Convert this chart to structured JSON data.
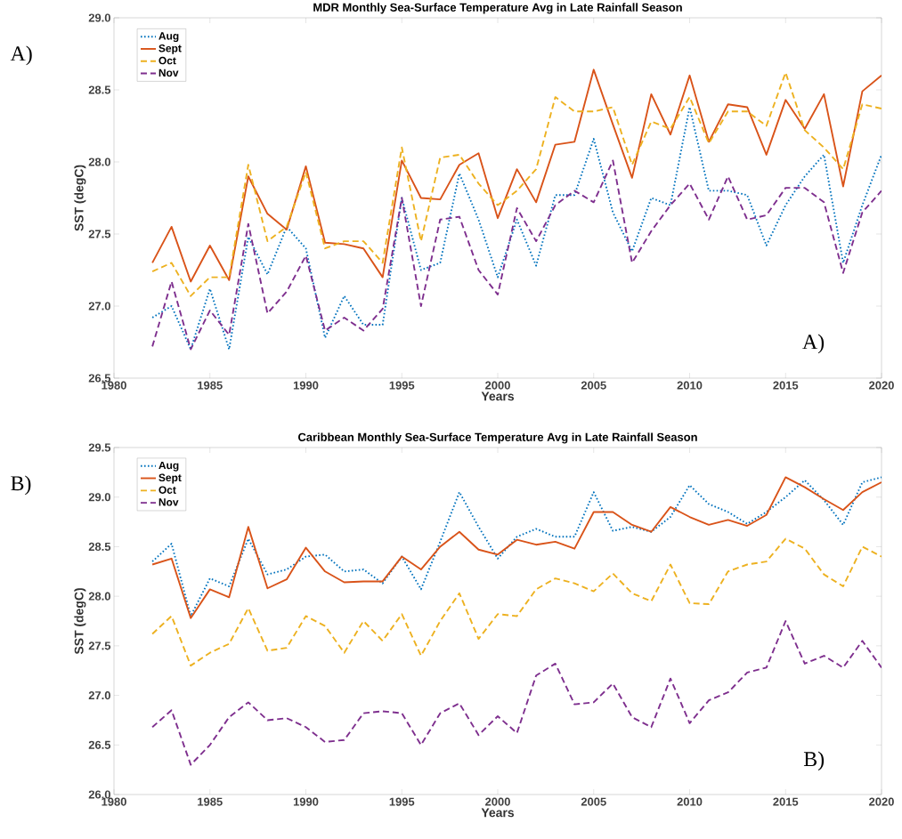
{
  "chart_data": [
    {
      "type": "line",
      "title": "MDR Monthly Sea-Surface Temperature Avg in Late Rainfall Season",
      "xlabel": "Years",
      "ylabel": "SST (degC)",
      "annotations": [
        "A)",
        "A)"
      ],
      "x": [
        1982,
        1983,
        1984,
        1985,
        1986,
        1987,
        1988,
        1989,
        1990,
        1991,
        1992,
        1993,
        1994,
        1995,
        1996,
        1997,
        1998,
        1999,
        2000,
        2001,
        2002,
        2003,
        2004,
        2005,
        2006,
        2007,
        2008,
        2009,
        2010,
        2011,
        2012,
        2013,
        2014,
        2015,
        2016,
        2017,
        2018,
        2019,
        2020
      ],
      "series": [
        {
          "name": "Aug",
          "color": "#0072bd",
          "line_style": "dotted",
          "values": [
            26.92,
            27.0,
            26.7,
            27.12,
            26.7,
            27.48,
            27.22,
            27.55,
            27.4,
            26.78,
            27.07,
            26.87,
            26.87,
            27.75,
            27.25,
            27.3,
            27.92,
            27.6,
            27.2,
            27.6,
            27.28,
            27.77,
            27.77,
            28.16,
            27.65,
            27.38,
            27.75,
            27.7,
            28.38,
            27.8,
            27.8,
            27.77,
            27.42,
            27.7,
            27.9,
            28.05,
            27.3,
            27.7,
            28.05
          ]
        },
        {
          "name": "Sept",
          "color": "#d95319",
          "line_style": "solid",
          "values": [
            27.3,
            27.55,
            27.17,
            27.42,
            27.18,
            27.9,
            27.64,
            27.53,
            27.97,
            27.44,
            27.43,
            27.4,
            27.2,
            28.01,
            27.75,
            27.74,
            27.98,
            28.06,
            27.61,
            27.95,
            27.72,
            28.12,
            28.14,
            28.64,
            28.26,
            27.89,
            28.47,
            28.19,
            28.6,
            28.14,
            28.4,
            28.38,
            28.05,
            28.43,
            28.23,
            28.47,
            27.83,
            28.49,
            28.6
          ]
        },
        {
          "name": "Oct",
          "color": "#edb120",
          "line_style": "dashed",
          "values": [
            27.24,
            27.3,
            27.07,
            27.2,
            27.2,
            27.98,
            27.45,
            27.55,
            27.93,
            27.4,
            27.45,
            27.45,
            27.3,
            28.1,
            27.45,
            28.03,
            28.05,
            27.85,
            27.7,
            27.8,
            27.95,
            28.45,
            28.35,
            28.35,
            28.38,
            27.98,
            28.28,
            28.23,
            28.45,
            28.13,
            28.35,
            28.35,
            28.25,
            28.62,
            28.22,
            28.1,
            27.95,
            28.4,
            28.37
          ]
        },
        {
          "name": "Nov",
          "color": "#7e2f8e",
          "line_style": "dashed",
          "values": [
            26.72,
            27.17,
            26.7,
            26.97,
            26.8,
            27.57,
            26.95,
            27.1,
            27.35,
            26.83,
            26.92,
            26.83,
            26.98,
            27.75,
            27.0,
            27.6,
            27.62,
            27.25,
            27.08,
            27.68,
            27.45,
            27.7,
            27.8,
            27.72,
            28.01,
            27.3,
            27.52,
            27.7,
            27.85,
            27.6,
            27.9,
            27.6,
            27.63,
            27.82,
            27.82,
            27.72,
            27.23,
            27.65,
            27.8
          ]
        }
      ],
      "xlim": [
        1980,
        2020
      ],
      "xticks": [
        1980,
        1985,
        1990,
        1995,
        2000,
        2005,
        2010,
        2015,
        2020
      ],
      "ylim": [
        26.5,
        29
      ],
      "yticks": [
        {
          "value": 26.5,
          "label": "26.5"
        },
        {
          "value": 27,
          "label": "27.0"
        },
        {
          "value": 27.5,
          "label": "27.5"
        },
        {
          "value": 28,
          "label": "28.0"
        },
        {
          "value": 28.5,
          "label": "28.5"
        },
        {
          "value": 29,
          "label": "29.0"
        }
      ],
      "grid": false,
      "legend": "top left"
    },
    {
      "type": "line",
      "title": "Caribbean Monthly Sea-Surface Temperature Avg in Late Rainfall Season",
      "xlabel": "Years",
      "ylabel": "SST (degC)",
      "annotations": [
        "B)",
        "B)"
      ],
      "x": [
        1982,
        1983,
        1984,
        1985,
        1986,
        1987,
        1988,
        1989,
        1990,
        1991,
        1992,
        1993,
        1994,
        1995,
        1996,
        1997,
        1998,
        1999,
        2000,
        2001,
        2002,
        2003,
        2004,
        2005,
        2006,
        2007,
        2008,
        2009,
        2010,
        2011,
        2012,
        2013,
        2014,
        2015,
        2016,
        2017,
        2018,
        2019,
        2020
      ],
      "series": [
        {
          "name": "Aug",
          "color": "#0072bd",
          "line_style": "dotted",
          "values": [
            28.35,
            28.53,
            27.8,
            28.18,
            28.1,
            28.58,
            28.22,
            28.27,
            28.4,
            28.42,
            28.25,
            28.27,
            28.13,
            28.4,
            28.07,
            28.55,
            29.05,
            28.7,
            28.38,
            28.6,
            28.68,
            28.6,
            28.6,
            29.05,
            28.66,
            28.7,
            28.65,
            28.8,
            29.12,
            28.93,
            28.85,
            28.73,
            28.85,
            29.0,
            29.17,
            28.97,
            28.72,
            29.15,
            29.2
          ]
        },
        {
          "name": "Sept",
          "color": "#d95319",
          "line_style": "solid",
          "values": [
            28.32,
            28.38,
            27.78,
            28.07,
            27.99,
            28.7,
            28.08,
            28.17,
            28.49,
            28.25,
            28.14,
            28.15,
            28.15,
            28.4,
            28.27,
            28.5,
            28.65,
            28.47,
            28.42,
            28.57,
            28.52,
            28.55,
            28.48,
            28.85,
            28.85,
            28.72,
            28.65,
            28.9,
            28.8,
            28.72,
            28.77,
            28.71,
            28.82,
            29.2,
            29.1,
            28.98,
            28.87,
            29.05,
            29.15
          ]
        },
        {
          "name": "Oct",
          "color": "#edb120",
          "line_style": "dashed",
          "values": [
            27.62,
            27.8,
            27.3,
            27.43,
            27.52,
            27.88,
            27.45,
            27.48,
            27.8,
            27.7,
            27.43,
            27.75,
            27.55,
            27.82,
            27.4,
            27.75,
            28.03,
            27.57,
            27.82,
            27.8,
            28.07,
            28.18,
            28.13,
            28.05,
            28.23,
            28.03,
            27.95,
            28.32,
            27.93,
            27.92,
            28.25,
            28.32,
            28.35,
            28.58,
            28.48,
            28.22,
            28.1,
            28.5,
            28.4
          ]
        },
        {
          "name": "Nov",
          "color": "#7e2f8e",
          "line_style": "dashed",
          "values": [
            26.68,
            26.85,
            26.3,
            26.5,
            26.78,
            26.93,
            26.75,
            26.77,
            26.68,
            26.53,
            26.55,
            26.82,
            26.84,
            26.82,
            26.5,
            26.82,
            26.92,
            26.6,
            26.79,
            26.62,
            27.2,
            27.32,
            26.91,
            26.93,
            27.12,
            26.78,
            26.68,
            27.17,
            26.72,
            26.95,
            27.03,
            27.23,
            27.28,
            27.75,
            27.32,
            27.4,
            27.28,
            27.55,
            27.28
          ]
        }
      ],
      "xlim": [
        1980,
        2020
      ],
      "xticks": [
        1980,
        1985,
        1990,
        1995,
        2000,
        2005,
        2010,
        2015,
        2020
      ],
      "ylim": [
        26,
        29.5
      ],
      "yticks": [
        {
          "value": 26,
          "label": "26.0"
        },
        {
          "value": 26.5,
          "label": "26.5"
        },
        {
          "value": 27,
          "label": "27.0"
        },
        {
          "value": 27.5,
          "label": "27.5"
        },
        {
          "value": 28,
          "label": "28.0"
        },
        {
          "value": 28.5,
          "label": "28.5"
        },
        {
          "value": 29,
          "label": "29.0"
        },
        {
          "value": 29.5,
          "label": "29.5"
        }
      ],
      "grid": false,
      "legend": "top left"
    }
  ]
}
